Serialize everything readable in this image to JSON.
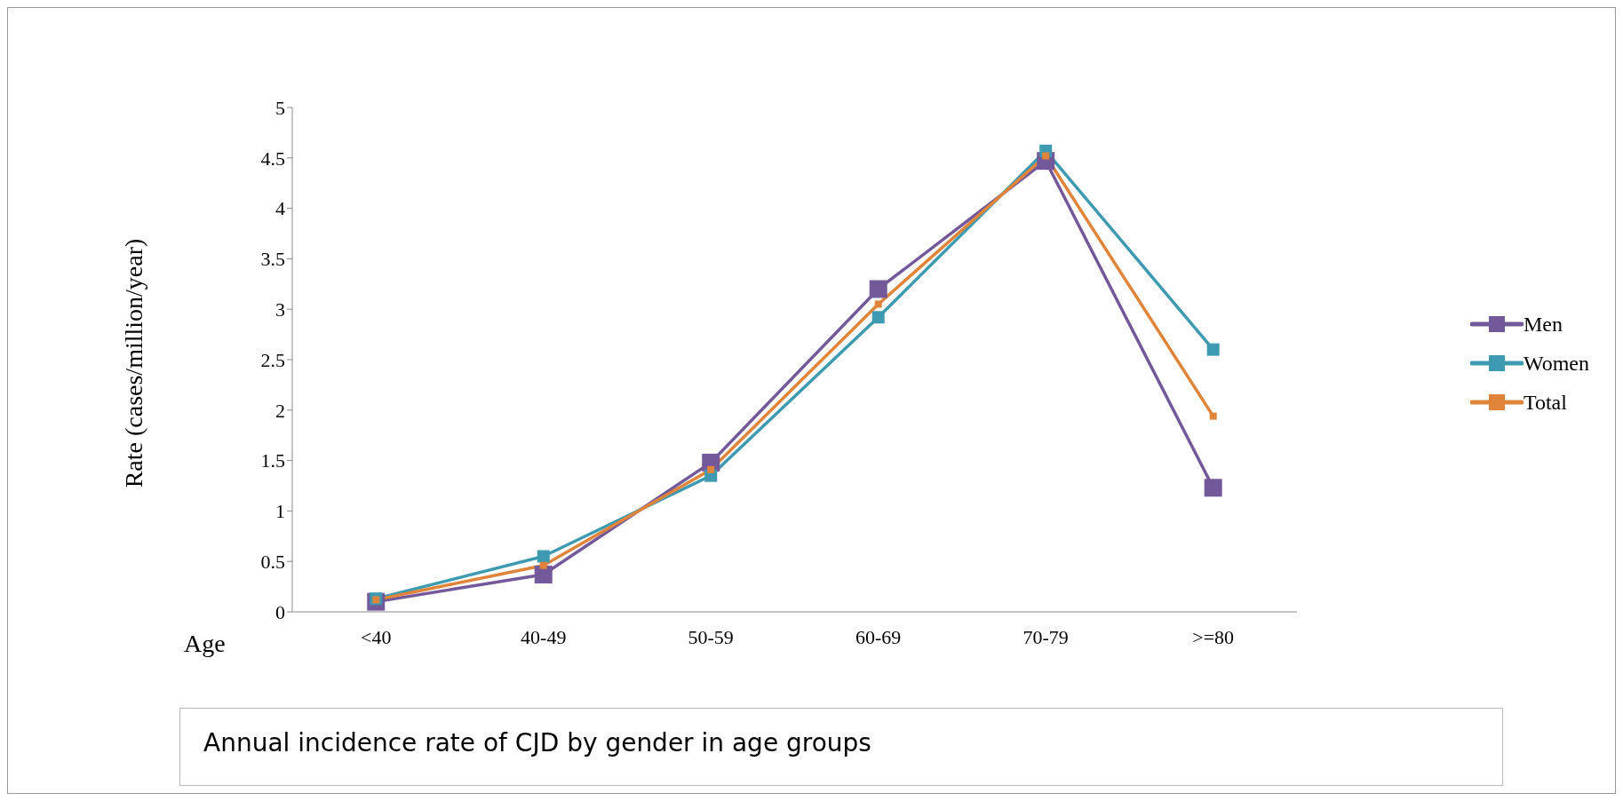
{
  "chart_data": {
    "type": "line",
    "title": "Annual incidence rate of CJD by gender in age groups",
    "xlabel": "Age",
    "ylabel": "Rate (cases/million/year)",
    "categories": [
      "<40",
      "40-49",
      "50-59",
      "60-69",
      "70-79",
      ">=80"
    ],
    "series": [
      {
        "name": "Men",
        "color": "#73589a",
        "values": [
          0.1,
          0.37,
          1.48,
          3.2,
          4.47,
          1.23
        ]
      },
      {
        "name": "Women",
        "color": "#3e9ab0",
        "values": [
          0.13,
          0.55,
          1.35,
          2.92,
          4.57,
          2.6
        ]
      },
      {
        "name": "Total",
        "color": "#e0843a",
        "values": [
          0.12,
          0.46,
          1.41,
          3.05,
          4.52,
          1.94
        ]
      }
    ],
    "ylim": [
      0,
      5
    ],
    "yticks": [
      0,
      0.5,
      1,
      1.5,
      2,
      2.5,
      3,
      3.5,
      4,
      4.5,
      5
    ],
    "grid": false,
    "legend": "right",
    "marker": "square",
    "line_style": "solid"
  }
}
